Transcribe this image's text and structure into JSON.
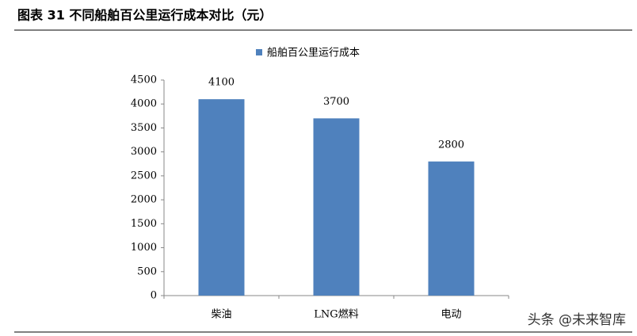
{
  "chart_data": {
    "type": "bar",
    "title": "图表 31 不同船舶百公里运行成本对比（元）",
    "categories": [
      "柴油",
      "LNG燃料",
      "电动"
    ],
    "series": [
      {
        "name": "船舶百公里运行成本",
        "color": "#4f81bd",
        "values": [
          4100,
          3700,
          2800
        ]
      }
    ],
    "ylim": [
      0,
      4500
    ],
    "yticks": [
      0,
      500,
      1000,
      1500,
      2000,
      2500,
      3000,
      3500,
      4000,
      4500
    ],
    "grid": false,
    "legend": "top",
    "watermark": "头条 @未来智库"
  }
}
